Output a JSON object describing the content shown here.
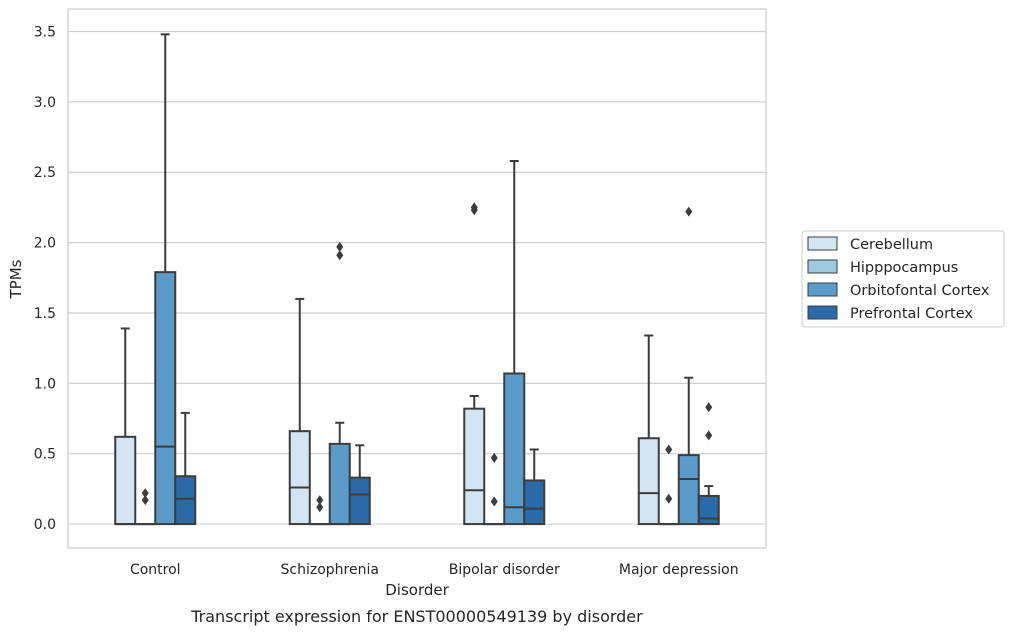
{
  "chart_data": {
    "type": "box",
    "caption": "Transcript expression for ENST00000549139 by disorder",
    "xlabel": "Disorder",
    "ylabel": "TPMs",
    "ylim": [
      -0.17,
      3.66
    ],
    "yticks": [
      "0.0",
      "0.5",
      "1.0",
      "1.5",
      "2.0",
      "2.5",
      "3.0",
      "3.5"
    ],
    "categories": [
      "Control",
      "Schizophrenia",
      "Bipolar disorder",
      "Major depression"
    ],
    "grid": "horizontal",
    "legend_position": "right",
    "series": [
      {
        "name": "Cerebellum",
        "color": "#d3e4f3",
        "boxes": [
          {
            "q1": 0.0,
            "median": 0.0,
            "q3": 0.62,
            "whisker_low": 0.0,
            "whisker_high": 1.39,
            "outliers": []
          },
          {
            "q1": 0.0,
            "median": 0.26,
            "q3": 0.66,
            "whisker_low": 0.0,
            "whisker_high": 1.6,
            "outliers": []
          },
          {
            "q1": 0.0,
            "median": 0.24,
            "q3": 0.82,
            "whisker_low": 0.0,
            "whisker_high": 0.91,
            "outliers": [
              2.23,
              2.25
            ]
          },
          {
            "q1": 0.0,
            "median": 0.22,
            "q3": 0.61,
            "whisker_low": 0.0,
            "whisker_high": 1.34,
            "outliers": []
          }
        ]
      },
      {
        "name": "Hipppocampus",
        "color": "#9ecae1",
        "boxes": [
          {
            "q1": 0.0,
            "median": 0.0,
            "q3": 0.0,
            "whisker_low": 0.0,
            "whisker_high": 0.0,
            "outliers": [
              0.17,
              0.22
            ]
          },
          {
            "q1": 0.0,
            "median": 0.0,
            "q3": 0.0,
            "whisker_low": 0.0,
            "whisker_high": 0.0,
            "outliers": [
              0.12,
              0.17
            ]
          },
          {
            "q1": 0.0,
            "median": 0.0,
            "q3": 0.0,
            "whisker_low": 0.0,
            "whisker_high": 0.0,
            "outliers": [
              0.16,
              0.47
            ]
          },
          {
            "q1": 0.0,
            "median": 0.0,
            "q3": 0.0,
            "whisker_low": 0.0,
            "whisker_high": 0.0,
            "outliers": [
              0.18,
              0.53
            ]
          }
        ]
      },
      {
        "name": "Orbitofontal Cortex",
        "color": "#5b9bc9",
        "boxes": [
          {
            "q1": 0.0,
            "median": 0.55,
            "q3": 1.79,
            "whisker_low": 0.0,
            "whisker_high": 3.48,
            "outliers": []
          },
          {
            "q1": 0.0,
            "median": 0.0,
            "q3": 0.57,
            "whisker_low": 0.0,
            "whisker_high": 0.72,
            "outliers": [
              1.91,
              1.97
            ]
          },
          {
            "q1": 0.0,
            "median": 0.12,
            "q3": 1.07,
            "whisker_low": 0.0,
            "whisker_high": 2.58,
            "outliers": []
          },
          {
            "q1": 0.0,
            "median": 0.32,
            "q3": 0.49,
            "whisker_low": 0.0,
            "whisker_high": 1.04,
            "outliers": [
              2.22
            ]
          }
        ]
      },
      {
        "name": "Prefrontal Cortex",
        "color": "#2a6aa8",
        "boxes": [
          {
            "q1": 0.0,
            "median": 0.18,
            "q3": 0.34,
            "whisker_low": 0.0,
            "whisker_high": 0.79,
            "outliers": []
          },
          {
            "q1": 0.0,
            "median": 0.21,
            "q3": 0.33,
            "whisker_low": 0.0,
            "whisker_high": 0.56,
            "outliers": []
          },
          {
            "q1": 0.0,
            "median": 0.11,
            "q3": 0.31,
            "whisker_low": 0.0,
            "whisker_high": 0.53,
            "outliers": []
          },
          {
            "q1": 0.0,
            "median": 0.04,
            "q3": 0.2,
            "whisker_low": 0.0,
            "whisker_high": 0.27,
            "outliers": [
              0.63,
              0.83
            ]
          }
        ]
      }
    ]
  }
}
